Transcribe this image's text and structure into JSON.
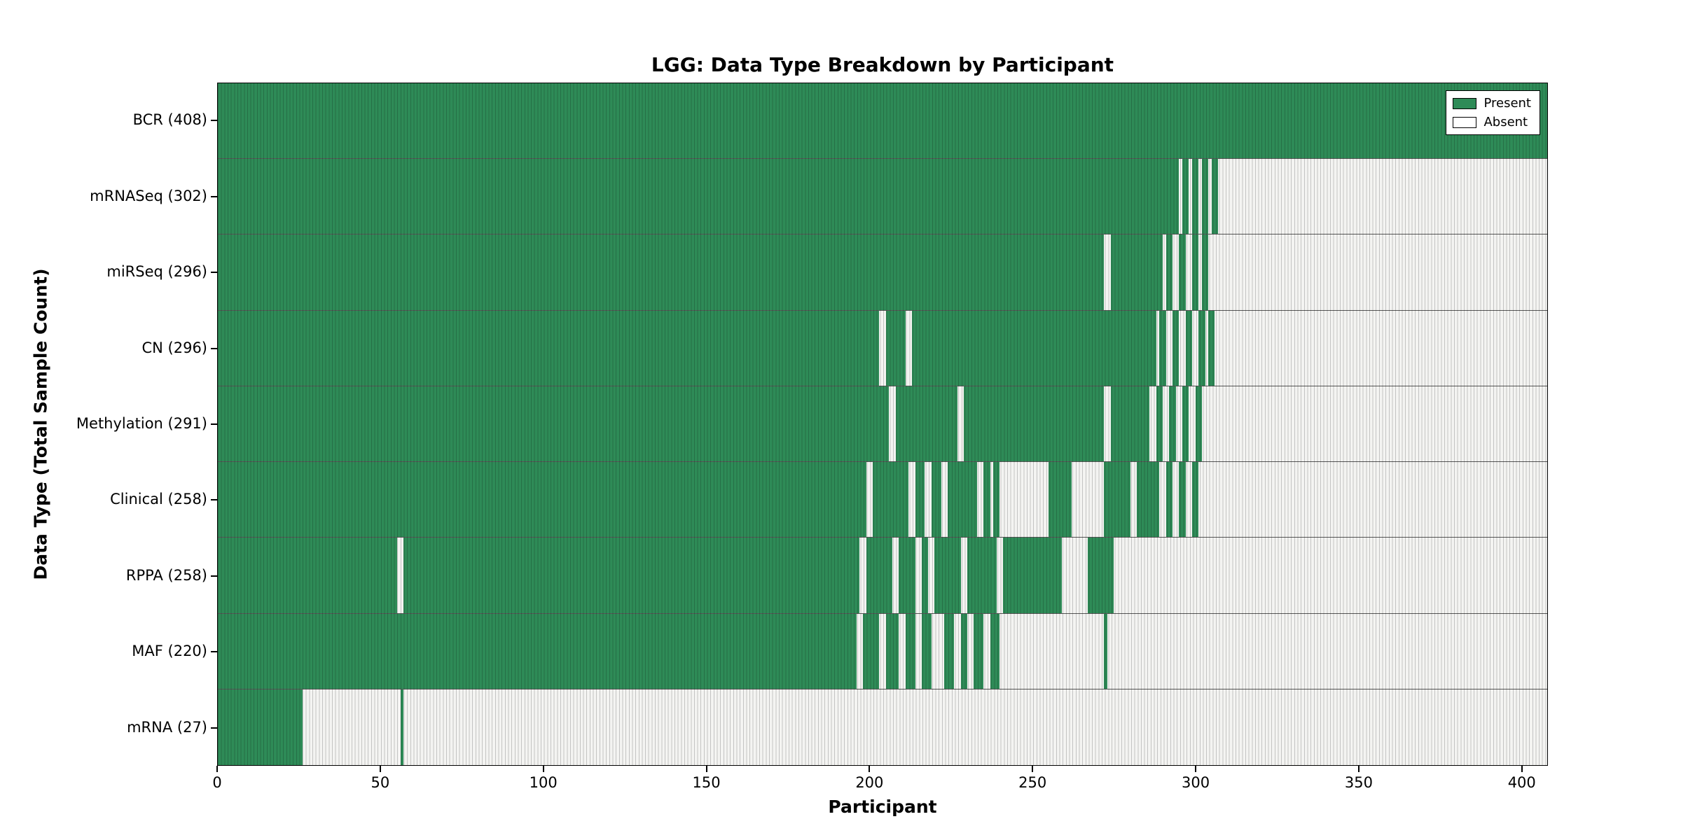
{
  "chart_data": {
    "type": "heatmap",
    "title": "LGG: Data Type Breakdown by Participant",
    "xlabel": "Participant",
    "ylabel": "Data Type (Total Sample Count)",
    "x_range": [
      0,
      408
    ],
    "x_ticks": [
      0,
      50,
      100,
      150,
      200,
      250,
      300,
      350,
      400
    ],
    "grid": "off",
    "legend_position": "upper right",
    "legend": [
      {
        "label": "Present",
        "color": "#2e8b57"
      },
      {
        "label": "Absent",
        "color": "#ffffff"
      }
    ],
    "colors": {
      "present": "#2e8b57",
      "absent": "#f4f4f2",
      "divider": "#000000"
    },
    "rows": [
      {
        "name": "BCR",
        "label": "BCR (408)",
        "count": 408,
        "present_segments": [
          [
            0,
            408
          ]
        ]
      },
      {
        "name": "mRNASeq",
        "label": "mRNASeq (302)",
        "count": 302,
        "present_segments": [
          [
            0,
            295
          ],
          [
            296,
            298
          ],
          [
            299,
            301
          ],
          [
            302,
            304
          ],
          [
            305,
            307
          ]
        ]
      },
      {
        "name": "miRSeq",
        "label": "miRSeq (296)",
        "count": 296,
        "present_segments": [
          [
            0,
            272
          ],
          [
            274,
            290
          ],
          [
            291,
            293
          ],
          [
            295,
            297
          ],
          [
            299,
            301
          ],
          [
            302,
            304
          ]
        ]
      },
      {
        "name": "CN",
        "label": "CN (296)",
        "count": 296,
        "present_segments": [
          [
            0,
            203
          ],
          [
            205,
            211
          ],
          [
            213,
            288
          ],
          [
            289,
            291
          ],
          [
            293,
            295
          ],
          [
            297,
            299
          ],
          [
            301,
            303
          ],
          [
            304,
            306
          ]
        ]
      },
      {
        "name": "Methylation",
        "label": "Methylation (291)",
        "count": 291,
        "present_segments": [
          [
            0,
            206
          ],
          [
            208,
            227
          ],
          [
            229,
            272
          ],
          [
            274,
            286
          ],
          [
            288,
            290
          ],
          [
            292,
            294
          ],
          [
            296,
            298
          ],
          [
            300,
            302
          ]
        ]
      },
      {
        "name": "Clinical",
        "label": "Clinical (258)",
        "count": 258,
        "present_segments": [
          [
            0,
            199
          ],
          [
            201,
            212
          ],
          [
            214,
            217
          ],
          [
            219,
            222
          ],
          [
            224,
            233
          ],
          [
            235,
            237
          ],
          [
            238,
            240
          ],
          [
            255,
            262
          ],
          [
            272,
            280
          ],
          [
            282,
            289
          ],
          [
            291,
            293
          ],
          [
            295,
            297
          ],
          [
            299,
            301
          ]
        ]
      },
      {
        "name": "RPPA",
        "label": "RPPA (258)",
        "count": 258,
        "present_segments": [
          [
            0,
            55
          ],
          [
            57,
            197
          ],
          [
            199,
            207
          ],
          [
            209,
            214
          ],
          [
            216,
            218
          ],
          [
            220,
            228
          ],
          [
            230,
            239
          ],
          [
            241,
            259
          ],
          [
            267,
            275
          ]
        ]
      },
      {
        "name": "MAF",
        "label": "MAF (220)",
        "count": 220,
        "present_segments": [
          [
            0,
            196
          ],
          [
            198,
            203
          ],
          [
            205,
            209
          ],
          [
            211,
            214
          ],
          [
            216,
            219
          ],
          [
            223,
            226
          ],
          [
            228,
            230
          ],
          [
            232,
            235
          ],
          [
            237,
            240
          ],
          [
            272,
            273
          ]
        ]
      },
      {
        "name": "mRNA",
        "label": "mRNA (27)",
        "count": 27,
        "present_segments": [
          [
            0,
            26
          ],
          [
            56,
            57
          ]
        ]
      }
    ]
  }
}
